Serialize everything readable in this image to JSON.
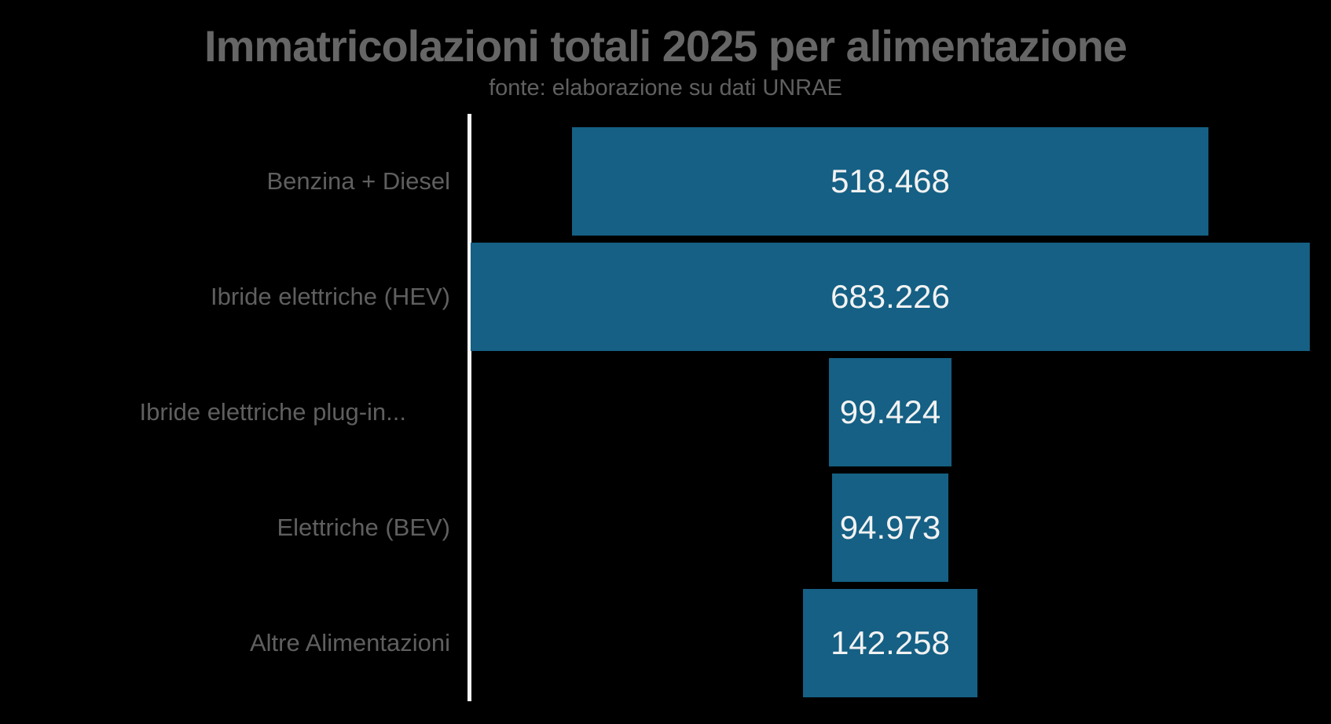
{
  "chart_data": {
    "type": "bar",
    "subtype": "funnel",
    "orientation": "horizontal",
    "title": "Immatricolazioni totali 2025 per alimentazione",
    "subtitle": "fonte: elaborazione su dati UNRAE",
    "categories": [
      "Benzina + Diesel",
      "Ibride elettriche (HEV)",
      "Ibride elettriche plug-in...",
      "Elettriche (BEV)",
      "Altre Alimentazioni"
    ],
    "values": [
      518468,
      683226,
      99424,
      94973,
      142258
    ],
    "value_labels": [
      "518.468",
      "683.226",
      "99.424",
      "94.973",
      "142.258"
    ],
    "max_value": 683226,
    "legend": "none",
    "grid": "off",
    "colors": {
      "background": "#000000",
      "bar": "#156084",
      "title": "#666666",
      "subtitle": "#606060",
      "category_label": "#5f5f5f",
      "value_label": "#f2f2f2",
      "axis_line": "#f5f5f5"
    }
  }
}
